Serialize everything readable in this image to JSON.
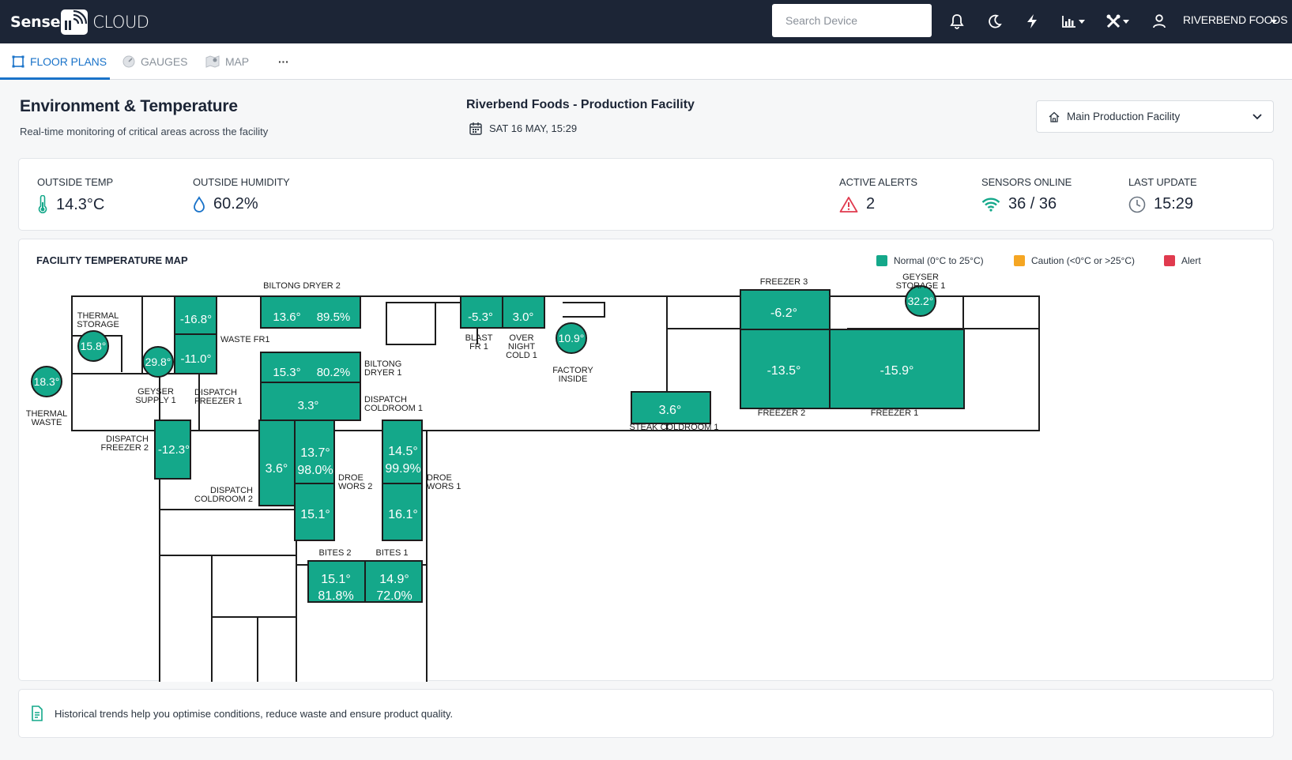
{
  "app": {
    "logo_main": "Sense",
    "logo_sub": "CLOUD",
    "search_placeholder": "Search Device",
    "account": "RIVERBEND FOODS"
  },
  "tabs": [
    {
      "label": "FLOOR PLANS",
      "icon": "floorplan-icon",
      "active": true
    },
    {
      "label": "GAUGES",
      "icon": "gauge-icon",
      "active": false
    },
    {
      "label": "MAP",
      "icon": "map-icon",
      "active": false
    },
    {
      "label": "···",
      "icon": "more-icon",
      "active": false
    }
  ],
  "header": {
    "title": "Environment & Temperature",
    "subtitle": "Real-time monitoring of critical areas across the facility",
    "facility_title": "Riverbend Foods - Production Facility",
    "datetime": "SAT 16 MAY, 15:29",
    "facility_select": "Main Production Facility"
  },
  "stats": {
    "outside_temp": {
      "label": "OUTSIDE TEMP",
      "value": "14.3°C"
    },
    "outside_humidity": {
      "label": "OUTSIDE HUMIDITY",
      "value": "60.2%"
    },
    "active_alerts": {
      "label": "ACTIVE ALERTS",
      "value": "2"
    },
    "sensors_online": {
      "label": "SENSORS ONLINE",
      "value": "36 / 36"
    },
    "last_update": {
      "label": "LAST UPDATE",
      "value": "15:29"
    }
  },
  "map": {
    "title": "FACILITY TEMPERATURE MAP",
    "legend": [
      {
        "label": "Normal (0°C to 25°C)",
        "color": "#14a88a"
      },
      {
        "label": "Caution (<0°C or >25°C)",
        "color": "#f5a623"
      },
      {
        "label": "Alert",
        "color": "#e03a4e"
      }
    ],
    "zone_labels": [
      "BILTONG DRYER 2",
      "THERMAL STORAGE",
      "WASTE FR1",
      "GEYSER SUPPLY 1",
      "DISPATCH FREEZER 1",
      "THERMAL WASTE",
      "BILTONG DRYER 1",
      "DISPATCH COLDROOM 1",
      "BLAST FR 1",
      "OVER NIGHT COLD 1",
      "FACTORY INSIDE",
      "FREEZER 3",
      "GEYSER STORAGE 1",
      "FREEZER 2",
      "FREEZER 1",
      "STEAK COLDROOM 1",
      "DISPATCH FREEZER 2",
      "DISPATCH COLDROOM 2",
      "DROE WORS 2",
      "DROE WORS 1",
      "BITES 2",
      "BITES 1"
    ],
    "readings": [
      "-16.8°",
      "-11.0°",
      "13.6°",
      "89.5%",
      "15.3°",
      "80.2%",
      "3.3°",
      "-5.3°",
      "3.0°",
      "-6.2°",
      "-13.5°",
      "-15.9°",
      "3.6°",
      "-12.3°",
      "3.6°",
      "13.7°",
      "98.0%",
      "15.1°",
      "14.5°",
      "99.9%",
      "16.1°",
      "15.1°",
      "81.8%",
      "14.9°",
      "72.0%"
    ],
    "sensor_points": [
      "15.8°",
      "29.8°",
      "18.3°",
      "10.9°",
      "32.2°"
    ]
  },
  "footer": {
    "note": "Historical trends help you optimise conditions, reduce waste and ensure product quality."
  }
}
